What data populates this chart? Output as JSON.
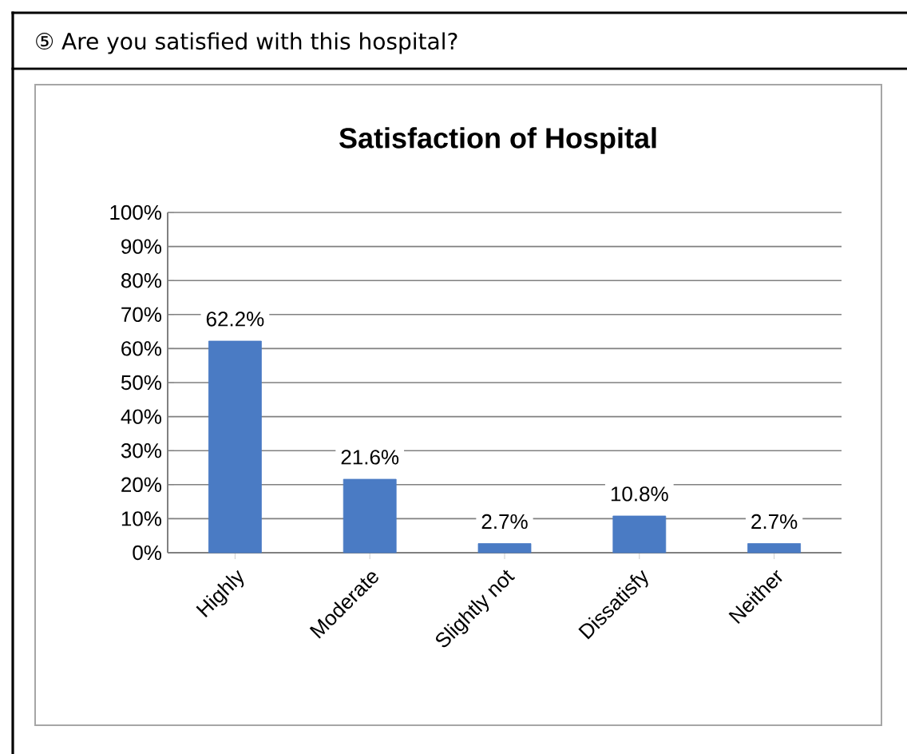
{
  "chart_data": {
    "type": "bar",
    "title": "Satisfaction of Hospital",
    "annotations": [
      "⑤  Are you satisfied with this hospital?"
    ],
    "categories": [
      "Highly",
      "Moderate",
      "Slightly not",
      "Dissatisfy",
      "Neither"
    ],
    "values": [
      62.2,
      21.6,
      2.7,
      10.8,
      2.7
    ],
    "value_labels": [
      "62.2%",
      "21.6%",
      "2.7%",
      "10.8%",
      "2.7%"
    ],
    "color": "#4a7bc4",
    "ylim": [
      0,
      100
    ],
    "yticks": [
      {
        "value": 0,
        "label": "0%"
      },
      {
        "value": 10,
        "label": "10%"
      },
      {
        "value": 20,
        "label": "20%"
      },
      {
        "value": 30,
        "label": "30%"
      },
      {
        "value": 40,
        "label": "40%"
      },
      {
        "value": 50,
        "label": "50%"
      },
      {
        "value": 60,
        "label": "60%"
      },
      {
        "value": 70,
        "label": "70%"
      },
      {
        "value": 80,
        "label": "80%"
      },
      {
        "value": 90,
        "label": "90%"
      },
      {
        "value": 100,
        "label": "100%"
      }
    ],
    "grid": "y"
  }
}
